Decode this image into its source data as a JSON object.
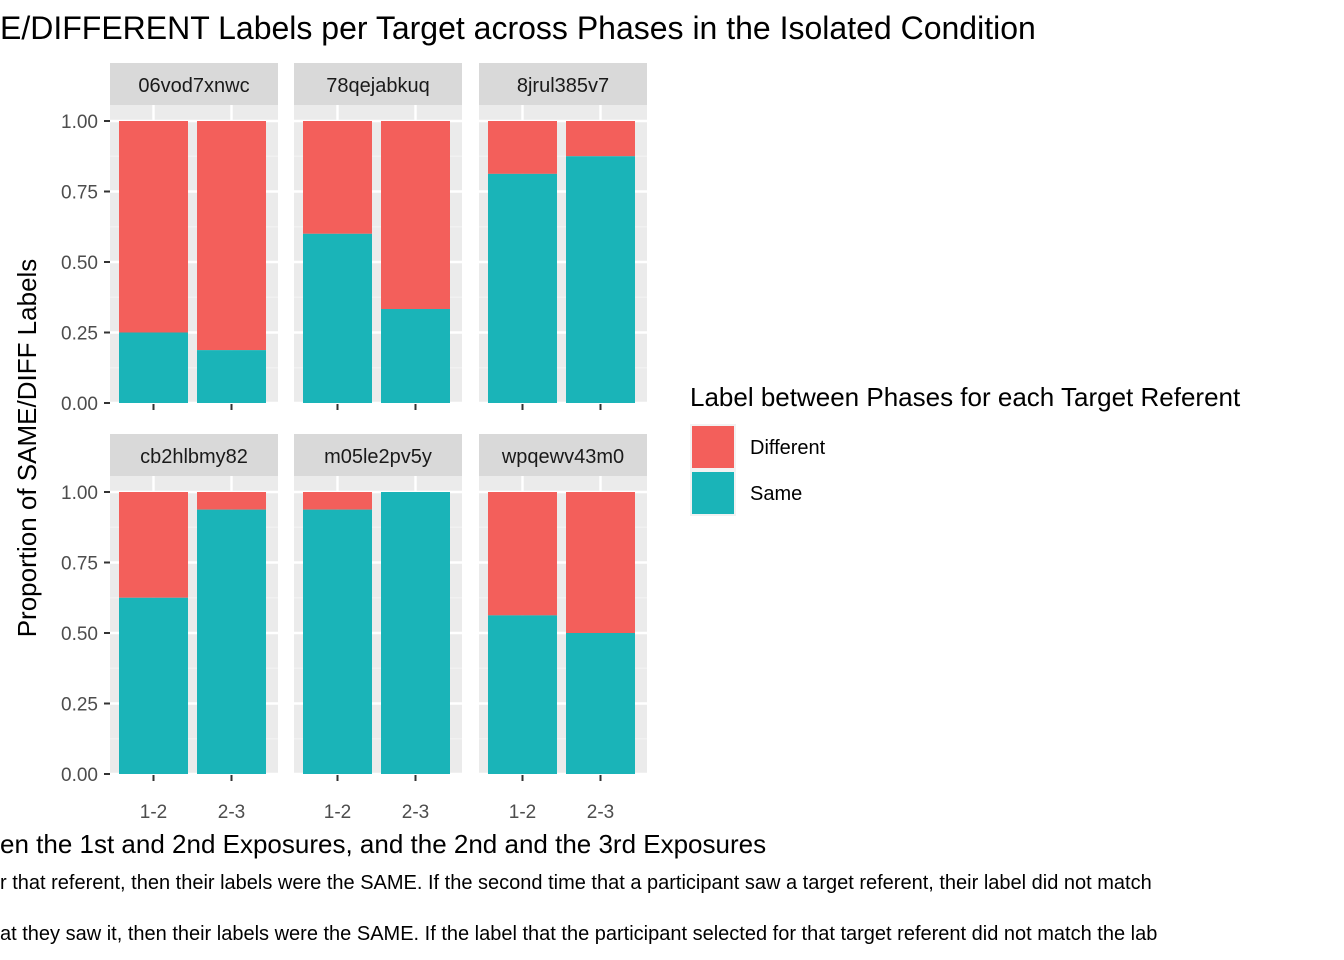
{
  "chart_data": {
    "type": "bar",
    "stacked": true,
    "title": "E/DIFFERENT Labels per Target across Phases in the Isolated Condition",
    "xlabel": "en the 1st and 2nd Exposures, and the 2nd and the 3rd Exposures",
    "ylabel": "Proportion of SAME/DIFF Labels",
    "caption_lines": [
      "r that referent, then their labels were the SAME. If the second time that a participant saw a target referent, their label did not match",
      "at they saw it, then their labels were the SAME. If the label that the participant selected for that target referent did not match the lab"
    ],
    "categories": [
      "1-2",
      "2-3"
    ],
    "ylim": [
      0,
      1
    ],
    "yticks": [
      0,
      0.25,
      0.5,
      0.75,
      1
    ],
    "ytick_labels": [
      "0.00",
      "0.25",
      "0.50",
      "0.75",
      "1.00"
    ],
    "grid": true,
    "legend": {
      "title": "Label between Phases for each Target Referent",
      "position": "right",
      "entries": [
        {
          "name": "Different",
          "color": "#F8766D"
        },
        {
          "name": "Same",
          "color": "#00BFC4"
        }
      ]
    },
    "colors": {
      "Different": "#F35F5B",
      "Same": "#1AB4B8",
      "panel_bg": "#EBEBEB",
      "strip_bg": "#D9D9D9",
      "grid_major": "#FFFFFF",
      "grid_minor": "#F2F2F2"
    },
    "facets": [
      {
        "name": "06vod7xnwc",
        "same": [
          0.25,
          0.1875
        ]
      },
      {
        "name": "78qejabkuq",
        "same": [
          0.6,
          0.3333
        ]
      },
      {
        "name": "8jrul385v7",
        "same": [
          0.8125,
          0.875
        ]
      },
      {
        "name": "cb2hlbmy82",
        "same": [
          0.625,
          0.9375
        ]
      },
      {
        "name": "m05le2pv5y",
        "same": [
          0.9375,
          1.0
        ]
      },
      {
        "name": "wpqewv43m0",
        "same": [
          0.5625,
          0.5
        ]
      }
    ]
  }
}
